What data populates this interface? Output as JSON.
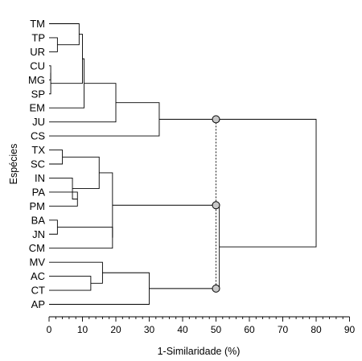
{
  "chart_data": {
    "type": "dendrogram",
    "orientation": "horizontal",
    "leaves": [
      "TM",
      "TP",
      "UR",
      "CU",
      "MG",
      "SP",
      "EM",
      "JU",
      "CS",
      "TX",
      "SC",
      "IN",
      "PA",
      "PM",
      "BA",
      "JN",
      "CM",
      "MV",
      "AC",
      "CT",
      "AP"
    ],
    "merges": [
      {
        "id": "m1",
        "a": "TP",
        "b": "UR",
        "distance": 2.5
      },
      {
        "id": "m2",
        "a": "TM",
        "b": "m1",
        "distance": 9
      },
      {
        "id": "m3",
        "a": "CU",
        "b": "MG",
        "distance": 0.5
      },
      {
        "id": "m4",
        "a": "m3",
        "b": "SP",
        "distance": 0.5
      },
      {
        "id": "m5",
        "a": "m2",
        "b": "m4",
        "distance": 10
      },
      {
        "id": "m6",
        "a": "m5",
        "b": "EM",
        "distance": 10.5
      },
      {
        "id": "m7",
        "a": "m6",
        "b": "JU",
        "distance": 20
      },
      {
        "id": "m8",
        "a": "m7",
        "b": "CS",
        "distance": 33
      },
      {
        "id": "m9",
        "a": "TX",
        "b": "SC",
        "distance": 4
      },
      {
        "id": "m10",
        "a": "PA",
        "b": "PM",
        "distance": 8.5
      },
      {
        "id": "m11",
        "a": "IN",
        "b": "m10",
        "distance": 7
      },
      {
        "id": "m12",
        "a": "m9",
        "b": "m11",
        "distance": 15
      },
      {
        "id": "m13",
        "a": "BA",
        "b": "JN",
        "distance": 2.5
      },
      {
        "id": "m14",
        "a": "m13",
        "b": "CM",
        "distance": 19
      },
      {
        "id": "m15",
        "a": "m12",
        "b": "m14",
        "distance": 19
      },
      {
        "id": "m16",
        "a": "CT",
        "b": "AC",
        "distance": 12.5
      },
      {
        "id": "m17",
        "a": "MV",
        "b": "m16",
        "distance": 16
      },
      {
        "id": "m18",
        "a": "m17",
        "b": "AP",
        "distance": 30
      },
      {
        "id": "m19",
        "a": "m15",
        "b": "m18",
        "distance": 51
      },
      {
        "id": "m20",
        "a": "m8",
        "b": "m19",
        "distance": 80
      }
    ],
    "cut_distance": 50,
    "cut_markers": [
      "m8",
      "m15",
      "m18"
    ],
    "xlabel": "1-Similaridade (%)",
    "ylabel": "Espécies",
    "xlim": [
      0,
      90
    ],
    "x_major_ticks": [
      0,
      10,
      20,
      30,
      40,
      50,
      60,
      70,
      80,
      90
    ],
    "x_tick_labels": [
      "0",
      "10",
      "20",
      "30",
      "40",
      "50",
      "60",
      "70",
      "80",
      "90"
    ],
    "x_minor_tick_step": 2,
    "marker_color": "#c8c8c8",
    "line_color": "#000000"
  }
}
